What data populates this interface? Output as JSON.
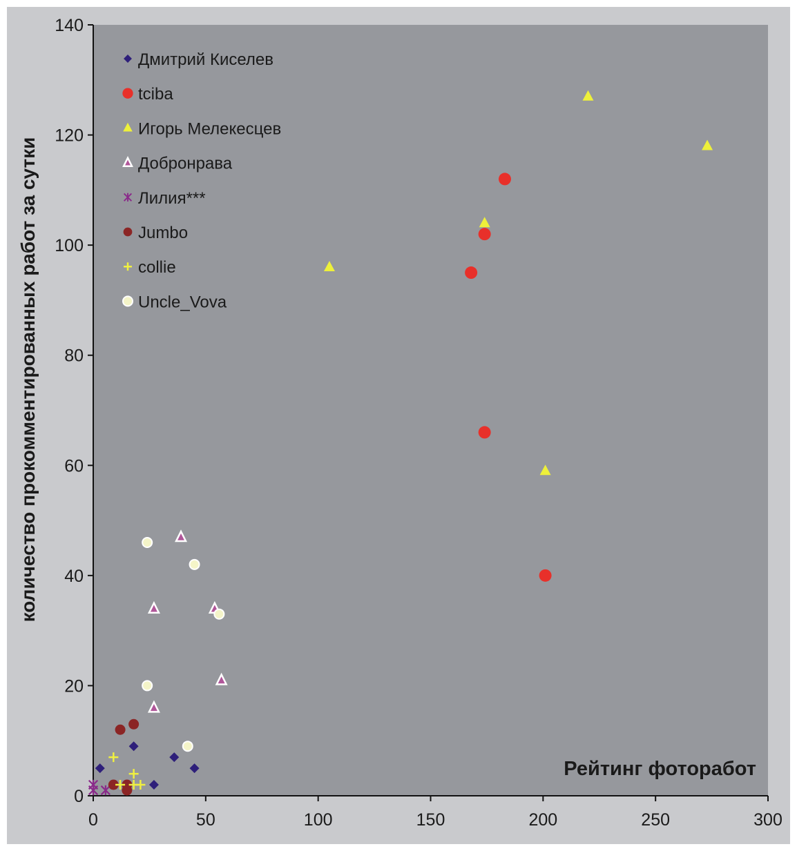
{
  "chart_data": {
    "type": "scatter",
    "title": "",
    "xlabel": "Рейтинг фоторабот",
    "ylabel": "количество прокомментированных работ за сутки",
    "xlim": [
      0,
      300
    ],
    "ylim": [
      0,
      140
    ],
    "xticks": [
      0,
      50,
      100,
      150,
      200,
      250,
      300
    ],
    "yticks": [
      0,
      20,
      40,
      60,
      80,
      100,
      120,
      140
    ],
    "grid": false,
    "legend_position": "top-left",
    "series": [
      {
        "name": "Дмитрий Киселев",
        "marker": "diamond",
        "color": "#2e1f7a",
        "points": [
          [
            3,
            5
          ],
          [
            18,
            9
          ],
          [
            27,
            2
          ],
          [
            36,
            7
          ],
          [
            45,
            5
          ]
        ]
      },
      {
        "name": "tciba",
        "marker": "circle-large",
        "color": "#e8302a",
        "points": [
          [
            168,
            95
          ],
          [
            174,
            102
          ],
          [
            183,
            112
          ],
          [
            174,
            66
          ],
          [
            201,
            40
          ]
        ]
      },
      {
        "name": "Игорь Мелекесцев",
        "marker": "triangle",
        "color": "#eef03a",
        "points": [
          [
            105,
            96
          ],
          [
            174,
            104
          ],
          [
            220,
            127
          ],
          [
            273,
            118
          ],
          [
            201,
            59
          ]
        ]
      },
      {
        "name": "Добронрава",
        "marker": "triangle-outline",
        "color": "#b0569a",
        "points": [
          [
            39,
            47
          ],
          [
            27,
            34
          ],
          [
            54,
            34
          ],
          [
            57,
            21
          ],
          [
            27,
            16
          ]
        ]
      },
      {
        "name": "Лилия***",
        "marker": "asterisk",
        "color": "#8a2a8a",
        "points": [
          [
            0,
            2
          ],
          [
            0,
            1
          ],
          [
            5.5,
            1
          ]
        ]
      },
      {
        "name": "Jumbo",
        "marker": "circle",
        "color": "#8b2525",
        "points": [
          [
            12,
            12
          ],
          [
            18,
            13
          ],
          [
            9,
            2
          ],
          [
            15,
            2
          ],
          [
            15,
            1
          ]
        ]
      },
      {
        "name": "collie",
        "marker": "plus",
        "color": "#f0f040",
        "points": [
          [
            9,
            7
          ],
          [
            18,
            4
          ],
          [
            12,
            2
          ],
          [
            18,
            2
          ],
          [
            21,
            2
          ]
        ]
      },
      {
        "name": "Uncle_Vova",
        "marker": "circle-light",
        "color": "#f4f4c8",
        "points": [
          [
            24,
            46
          ],
          [
            45,
            42
          ],
          [
            56,
            33
          ],
          [
            24,
            20
          ],
          [
            42,
            9
          ]
        ]
      }
    ]
  }
}
